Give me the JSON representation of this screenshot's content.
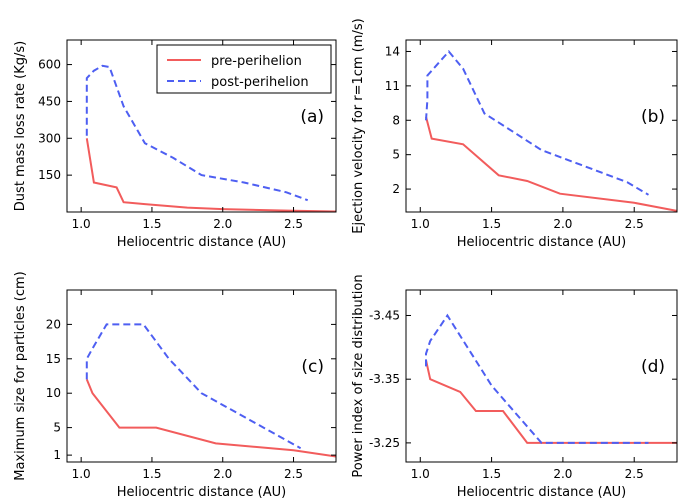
{
  "colors": {
    "pre": "#f25c5c",
    "post": "#4e5ff2"
  },
  "chart_data": [
    {
      "type": "line",
      "panel": "(a)",
      "xlabel": "Heliocentric distance (AU)",
      "ylabel": "Dust mass loss rate (Kg/s)",
      "xlim": [
        0.9,
        2.8
      ],
      "ylim": [
        0,
        700
      ],
      "xticks": [
        1.0,
        1.5,
        2.0,
        2.5
      ],
      "xtick_labels": [
        "1.0",
        "1.5",
        "2.0",
        "2.5"
      ],
      "yticks": [
        150,
        300,
        450,
        600
      ],
      "ytick_labels": [
        "150",
        "300",
        "450",
        "600"
      ],
      "legend": {
        "placement": "top-center",
        "entries": [
          "pre-perihelion",
          "post-perihelion"
        ]
      },
      "series": [
        {
          "name": "pre-perihelion",
          "style": "solid",
          "x": [
            1.04,
            1.09,
            1.25,
            1.3,
            1.45,
            1.75,
            2.0,
            2.5,
            2.8
          ],
          "y": [
            300,
            120,
            100,
            40,
            32,
            18,
            12,
            5,
            2
          ]
        },
        {
          "name": "post-perihelion",
          "style": "dashed",
          "x": [
            1.04,
            1.04,
            1.09,
            1.15,
            1.2,
            1.3,
            1.45,
            1.65,
            1.85,
            2.15,
            2.45,
            2.6
          ],
          "y": [
            310,
            545,
            575,
            595,
            590,
            430,
            280,
            220,
            150,
            120,
            80,
            48
          ]
        }
      ]
    },
    {
      "type": "line",
      "panel": "(b)",
      "xlabel": "Heliocentric distance (AU)",
      "ylabel": "Ejection velocity for r=1cm (m/s)",
      "xlim": [
        0.9,
        2.8
      ],
      "ylim": [
        0,
        15
      ],
      "xticks": [
        1.0,
        1.5,
        2.0,
        2.5
      ],
      "xtick_labels": [
        "1.0",
        "1.5",
        "2.0",
        "2.5"
      ],
      "yticks": [
        2,
        5,
        8,
        11,
        14
      ],
      "ytick_labels": [
        "2",
        "5",
        "8",
        "11",
        "14"
      ],
      "series": [
        {
          "name": "pre-perihelion",
          "style": "solid",
          "x": [
            1.04,
            1.08,
            1.3,
            1.55,
            1.75,
            1.98,
            2.5,
            2.8
          ],
          "y": [
            8.3,
            6.4,
            5.9,
            3.2,
            2.7,
            1.6,
            0.8,
            0.1
          ]
        },
        {
          "name": "post-perihelion",
          "style": "dashed",
          "x": [
            1.04,
            1.05,
            1.05,
            1.2,
            1.3,
            1.45,
            1.65,
            1.85,
            2.15,
            2.45,
            2.6
          ],
          "y": [
            8.0,
            9.8,
            11.9,
            14.0,
            12.5,
            8.6,
            7.0,
            5.4,
            4.0,
            2.6,
            1.5
          ]
        }
      ]
    },
    {
      "type": "line",
      "panel": "(c)",
      "xlabel": "Heliocentric distance (AU)",
      "ylabel": "Maximum size for particles (cm)",
      "xlim": [
        0.9,
        2.8
      ],
      "ylim": [
        0,
        25
      ],
      "xticks": [
        1.0,
        1.5,
        2.0,
        2.5
      ],
      "xtick_labels": [
        "1.0",
        "1.5",
        "2.0",
        "2.5"
      ],
      "yticks": [
        1,
        5,
        10,
        15,
        20
      ],
      "ytick_labels": [
        "1",
        "5",
        "10",
        "15",
        "20"
      ],
      "series": [
        {
          "name": "pre-perihelion",
          "style": "solid",
          "x": [
            1.04,
            1.08,
            1.27,
            1.53,
            1.95,
            2.5,
            2.8
          ],
          "y": [
            12,
            10,
            5,
            5,
            2.7,
            1.7,
            0.8
          ]
        },
        {
          "name": "post-perihelion",
          "style": "dashed",
          "x": [
            1.04,
            1.04,
            1.08,
            1.18,
            1.44,
            1.62,
            1.85,
            2.2,
            2.55
          ],
          "y": [
            12,
            15,
            16.5,
            20,
            20,
            15,
            10,
            6,
            2
          ]
        }
      ]
    },
    {
      "type": "line",
      "panel": "(d)",
      "xlabel": "Heliocentric distance (AU)",
      "ylabel": "Power index of size distribution",
      "xlim": [
        0.9,
        2.8
      ],
      "ylim": [
        -3.22,
        -3.49
      ],
      "xticks": [
        1.0,
        1.5,
        2.0,
        2.5
      ],
      "xtick_labels": [
        "1.0",
        "1.5",
        "2.0",
        "2.5"
      ],
      "yticks": [
        -3.25,
        -3.35,
        -3.45
      ],
      "ytick_labels": [
        "-3.25",
        "-3.35",
        "-3.45"
      ],
      "series": [
        {
          "name": "pre-perihelion",
          "style": "solid",
          "x": [
            1.04,
            1.07,
            1.28,
            1.39,
            1.58,
            1.75,
            2.8
          ],
          "y": [
            -3.38,
            -3.35,
            -3.33,
            -3.3,
            -3.3,
            -3.25,
            -3.25
          ]
        },
        {
          "name": "post-perihelion",
          "style": "dashed",
          "x": [
            1.04,
            1.04,
            1.07,
            1.19,
            1.5,
            1.85,
            2.6
          ],
          "y": [
            -3.37,
            -3.39,
            -3.41,
            -3.45,
            -3.34,
            -3.25,
            -3.25
          ]
        }
      ]
    }
  ]
}
